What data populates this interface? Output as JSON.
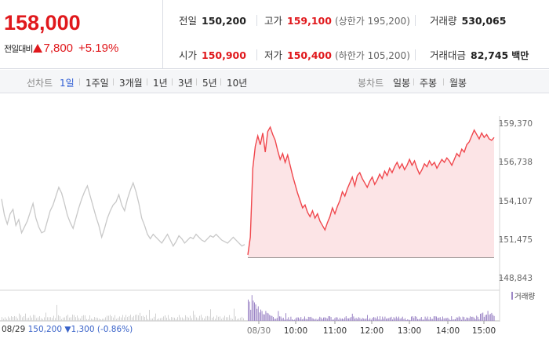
{
  "summary": {
    "price": "158,000",
    "change_label": "전일대비",
    "change_amount": "7,800",
    "change_percent": "+5.19%",
    "prev_close": {
      "label": "전일",
      "value": "150,200"
    },
    "open": {
      "label": "시가",
      "value": "150,900"
    },
    "high": {
      "label": "고가",
      "value": "159,100",
      "sub": "(상한가 195,200)"
    },
    "low": {
      "label": "저가",
      "value": "150,400",
      "sub": "(하한가 105,200)"
    },
    "volume": {
      "label": "거래량",
      "value": "530,065"
    },
    "trade_value": {
      "label": "거래대금",
      "value": "82,745",
      "unit": "백만"
    }
  },
  "toolbar": {
    "line_chart_label": "선차트",
    "periods": [
      "1일",
      "1주일",
      "3개월",
      "1년",
      "3년",
      "5년",
      "10년"
    ],
    "selected_period": "1일",
    "candle_chart_label": "봉차트",
    "candle_periods": [
      "일봉",
      "주봉",
      "월봉"
    ]
  },
  "colors": {
    "up": "#e0181c",
    "selected": "#2c5bd4",
    "today_line": "#f0474d",
    "today_fill": "#fce4e6",
    "prev_line": "#c8c8c8",
    "volume_today": "#9c86c6",
    "volume_prev": "#d2d2d2"
  },
  "chart_data": {
    "type": "line",
    "y_ticks": [
      "159,370",
      "156,738",
      "154,107",
      "151,475",
      "148,843"
    ],
    "y_range": [
      148843,
      159370
    ],
    "x_ticks": [
      "08/29",
      "08/30",
      "10:00",
      "11:00",
      "12:00",
      "13:00",
      "14:00",
      "15:00"
    ],
    "prev_close_value": 150200,
    "volume_legend": "거래량",
    "footer_prev_date": "08/29",
    "footer_prev_close": "150,200",
    "footer_prev_change": "▼1,300",
    "footer_prev_pct": "(-0.86%)",
    "prev_day_series": [
      154200,
      153100,
      152500,
      153200,
      153500,
      152400,
      152800,
      151900,
      152300,
      152700,
      153300,
      153900,
      152900,
      152300,
      151900,
      152000,
      152700,
      153400,
      153800,
      154400,
      155000,
      154600,
      153900,
      153100,
      152600,
      152200,
      152900,
      153600,
      154200,
      154700,
      155100,
      154400,
      153700,
      153000,
      152400,
      151600,
      152200,
      152900,
      153400,
      153800,
      154000,
      154500,
      153800,
      153400,
      154200,
      154800,
      155300,
      154700,
      153900,
      152900,
      152400,
      151800,
      151500,
      151800,
      151600,
      151400,
      151200,
      151500,
      151800,
      151400,
      151000,
      151300,
      151700,
      151500,
      151200,
      151400,
      151600,
      151500,
      151800,
      151600,
      151400,
      151300,
      151500,
      151700,
      151600,
      151800,
      151600,
      151400,
      151300,
      151200,
      151400,
      151600,
      151400,
      151200,
      151000,
      151100
    ],
    "today_series": [
      150400,
      151600,
      156300,
      157800,
      158500,
      157900,
      158700,
      157400,
      158800,
      159100,
      158600,
      158200,
      157500,
      156900,
      157300,
      156700,
      157200,
      156500,
      155800,
      155200,
      154600,
      154100,
      153600,
      153800,
      153300,
      153000,
      153400,
      152900,
      153200,
      152700,
      152400,
      152100,
      152600,
      153000,
      153600,
      153200,
      153700,
      154100,
      154700,
      154400,
      154900,
      155300,
      155700,
      155100,
      155800,
      156000,
      155600,
      155300,
      155000,
      155400,
      155700,
      155200,
      155500,
      155900,
      155600,
      156100,
      155800,
      156300,
      156000,
      156400,
      156700,
      156300,
      156600,
      156200,
      156500,
      156900,
      156500,
      156800,
      156300,
      155900,
      156200,
      156600,
      156400,
      156800,
      156500,
      156700,
      156300,
      156600,
      156900,
      156700,
      157000,
      156800,
      156500,
      156900,
      157300,
      157100,
      157600,
      157400,
      157900,
      158100,
      158500,
      158900,
      158600,
      158300,
      158700,
      158400,
      158600,
      158300,
      158200,
      158400
    ]
  }
}
